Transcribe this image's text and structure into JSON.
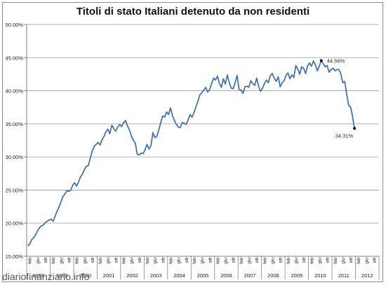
{
  "chart_data": {
    "type": "line",
    "title": "Titoli di stato Italiani detenuto da non residenti",
    "xlabel": "",
    "ylabel": "",
    "ylim": [
      0.15,
      0.5
    ],
    "yticks": [
      0.15,
      0.2,
      0.25,
      0.3,
      0.35,
      0.4,
      0.45,
      0.5
    ],
    "ytick_labels": [
      "15.00%",
      "20.00%",
      "25.00%",
      "30.00%",
      "35.00%",
      "40.00%",
      "45.00%",
      "50.00%"
    ],
    "grid": "horizontal",
    "month_tick_labels": [
      "feb",
      "giu",
      "ott"
    ],
    "x_start_year": 1998,
    "x_end_year": 2012,
    "year_labels": [
      {
        "label": "1998",
        "year": 1998
      },
      {
        "label": "1999",
        "year": 1999
      },
      {
        "label": "2000",
        "year": 2000
      },
      {
        "label": "2001",
        "year": 2001
      },
      {
        "label": "2002",
        "year": 2002
      },
      {
        "label": "2003",
        "year": 2003
      },
      {
        "label": "2004",
        "year": 2004
      },
      {
        "label": "2005",
        "year": 2005
      },
      {
        "label": "2006",
        "year": 2006
      },
      {
        "label": "2007",
        "year": 2007
      },
      {
        "label": "2008",
        "year": 2008
      },
      {
        "label": "2009",
        "year": 2009
      },
      {
        "label": "2010",
        "year": 2010
      },
      {
        "label": "2011",
        "year": 2011
      },
      {
        "label": "2012",
        "year": 2012
      }
    ],
    "series": [
      {
        "color": "#3a6eb4",
        "points": [
          [
            "1998-01",
            0.166
          ],
          [
            "1998-02",
            0.168
          ],
          [
            "1998-03",
            0.175
          ],
          [
            "1998-04",
            0.178
          ],
          [
            "1998-05",
            0.182
          ],
          [
            "1998-06",
            0.188
          ],
          [
            "1998-07",
            0.193
          ],
          [
            "1998-08",
            0.196
          ],
          [
            "1998-09",
            0.197
          ],
          [
            "1998-10",
            0.201
          ],
          [
            "1998-11",
            0.203
          ],
          [
            "1998-12",
            0.205
          ],
          [
            "1999-01",
            0.206
          ],
          [
            "1999-02",
            0.203
          ],
          [
            "1999-03",
            0.21
          ],
          [
            "1999-04",
            0.218
          ],
          [
            "1999-05",
            0.224
          ],
          [
            "1999-06",
            0.232
          ],
          [
            "1999-07",
            0.24
          ],
          [
            "1999-08",
            0.244
          ],
          [
            "1999-09",
            0.249
          ],
          [
            "1999-10",
            0.248
          ],
          [
            "1999-11",
            0.25
          ],
          [
            "1999-12",
            0.257
          ],
          [
            "2000-01",
            0.261
          ],
          [
            "2000-02",
            0.256
          ],
          [
            "2000-03",
            0.262
          ],
          [
            "2000-04",
            0.27
          ],
          [
            "2000-05",
            0.274
          ],
          [
            "2000-06",
            0.281
          ],
          [
            "2000-07",
            0.286
          ],
          [
            "2000-08",
            0.287
          ],
          [
            "2000-09",
            0.298
          ],
          [
            "2000-10",
            0.309
          ],
          [
            "2000-11",
            0.316
          ],
          [
            "2000-12",
            0.319
          ],
          [
            "2001-01",
            0.322
          ],
          [
            "2001-02",
            0.318
          ],
          [
            "2001-03",
            0.326
          ],
          [
            "2001-04",
            0.331
          ],
          [
            "2001-05",
            0.338
          ],
          [
            "2001-06",
            0.342
          ],
          [
            "2001-07",
            0.335
          ],
          [
            "2001-08",
            0.348
          ],
          [
            "2001-09",
            0.343
          ],
          [
            "2001-10",
            0.339
          ],
          [
            "2001-11",
            0.345
          ],
          [
            "2001-12",
            0.349
          ],
          [
            "2002-01",
            0.346
          ],
          [
            "2002-02",
            0.352
          ],
          [
            "2002-03",
            0.355
          ],
          [
            "2002-04",
            0.347
          ],
          [
            "2002-05",
            0.341
          ],
          [
            "2002-06",
            0.332
          ],
          [
            "2002-07",
            0.325
          ],
          [
            "2002-08",
            0.321
          ],
          [
            "2002-09",
            0.304
          ],
          [
            "2002-10",
            0.303
          ],
          [
            "2002-11",
            0.306
          ],
          [
            "2002-12",
            0.305
          ],
          [
            "2003-01",
            0.311
          ],
          [
            "2003-02",
            0.319
          ],
          [
            "2003-03",
            0.312
          ],
          [
            "2003-04",
            0.317
          ],
          [
            "2003-05",
            0.337
          ],
          [
            "2003-06",
            0.329
          ],
          [
            "2003-07",
            0.331
          ],
          [
            "2003-08",
            0.341
          ],
          [
            "2003-09",
            0.352
          ],
          [
            "2003-10",
            0.362
          ],
          [
            "2003-11",
            0.36
          ],
          [
            "2003-12",
            0.368
          ],
          [
            "2004-01",
            0.364
          ],
          [
            "2004-02",
            0.374
          ],
          [
            "2004-03",
            0.362
          ],
          [
            "2004-04",
            0.355
          ],
          [
            "2004-05",
            0.349
          ],
          [
            "2004-06",
            0.345
          ],
          [
            "2004-07",
            0.344
          ],
          [
            "2004-08",
            0.352
          ],
          [
            "2004-09",
            0.351
          ],
          [
            "2004-10",
            0.349
          ],
          [
            "2004-11",
            0.356
          ],
          [
            "2004-12",
            0.364
          ],
          [
            "2005-01",
            0.36
          ],
          [
            "2005-02",
            0.367
          ],
          [
            "2005-03",
            0.376
          ],
          [
            "2005-04",
            0.384
          ],
          [
            "2005-05",
            0.394
          ],
          [
            "2005-06",
            0.397
          ],
          [
            "2005-07",
            0.401
          ],
          [
            "2005-08",
            0.405
          ],
          [
            "2005-09",
            0.398
          ],
          [
            "2005-10",
            0.402
          ],
          [
            "2005-11",
            0.411
          ],
          [
            "2005-12",
            0.419
          ],
          [
            "2006-01",
            0.416
          ],
          [
            "2006-02",
            0.422
          ],
          [
            "2006-03",
            0.411
          ],
          [
            "2006-04",
            0.405
          ],
          [
            "2006-05",
            0.418
          ],
          [
            "2006-06",
            0.41
          ],
          [
            "2006-07",
            0.424
          ],
          [
            "2006-08",
            0.412
          ],
          [
            "2006-09",
            0.404
          ],
          [
            "2006-10",
            0.403
          ],
          [
            "2006-11",
            0.412
          ],
          [
            "2006-12",
            0.423
          ],
          [
            "2007-01",
            0.402
          ],
          [
            "2007-02",
            0.401
          ],
          [
            "2007-03",
            0.396
          ],
          [
            "2007-04",
            0.406
          ],
          [
            "2007-05",
            0.407
          ],
          [
            "2007-06",
            0.405
          ],
          [
            "2007-07",
            0.415
          ],
          [
            "2007-08",
            0.411
          ],
          [
            "2007-09",
            0.408
          ],
          [
            "2007-10",
            0.419
          ],
          [
            "2007-11",
            0.407
          ],
          [
            "2007-12",
            0.399
          ],
          [
            "2008-01",
            0.404
          ],
          [
            "2008-02",
            0.411
          ],
          [
            "2008-03",
            0.416
          ],
          [
            "2008-04",
            0.412
          ],
          [
            "2008-05",
            0.423
          ],
          [
            "2008-06",
            0.426
          ],
          [
            "2008-07",
            0.419
          ],
          [
            "2008-08",
            0.414
          ],
          [
            "2008-09",
            0.421
          ],
          [
            "2008-10",
            0.406
          ],
          [
            "2008-11",
            0.412
          ],
          [
            "2008-12",
            0.415
          ],
          [
            "2009-01",
            0.423
          ],
          [
            "2009-02",
            0.427
          ],
          [
            "2009-03",
            0.418
          ],
          [
            "2009-04",
            0.424
          ],
          [
            "2009-05",
            0.42
          ],
          [
            "2009-06",
            0.438
          ],
          [
            "2009-07",
            0.433
          ],
          [
            "2009-08",
            0.425
          ],
          [
            "2009-09",
            0.436
          ],
          [
            "2009-10",
            0.434
          ],
          [
            "2009-11",
            0.426
          ],
          [
            "2009-12",
            0.437
          ],
          [
            "2010-01",
            0.442
          ],
          [
            "2010-02",
            0.437
          ],
          [
            "2010-03",
            0.445
          ],
          [
            "2010-04",
            0.439
          ],
          [
            "2010-05",
            0.43
          ],
          [
            "2010-06",
            0.437
          ],
          [
            "2010-07",
            0.4456
          ],
          [
            "2010-08",
            0.441
          ],
          [
            "2010-09",
            0.436
          ],
          [
            "2010-10",
            0.438
          ],
          [
            "2010-11",
            0.428
          ],
          [
            "2010-12",
            0.432
          ],
          [
            "2011-01",
            0.434
          ],
          [
            "2011-02",
            0.43
          ],
          [
            "2011-03",
            0.432
          ],
          [
            "2011-04",
            0.432
          ],
          [
            "2011-05",
            0.426
          ],
          [
            "2011-06",
            0.412
          ],
          [
            "2011-07",
            0.414
          ],
          [
            "2011-08",
            0.395
          ],
          [
            "2011-09",
            0.378
          ],
          [
            "2011-10",
            0.375
          ],
          [
            "2011-11",
            0.361
          ],
          [
            "2011-12",
            0.3431
          ]
        ]
      }
    ],
    "annotations": [
      {
        "text": "44.56%",
        "date": "2010-07",
        "value": 0.4456,
        "position": "right"
      },
      {
        "text": "34.31%",
        "date": "2011-12",
        "value": 0.3431,
        "position": "below-left"
      }
    ]
  },
  "watermark": "diariofinanziario.info"
}
